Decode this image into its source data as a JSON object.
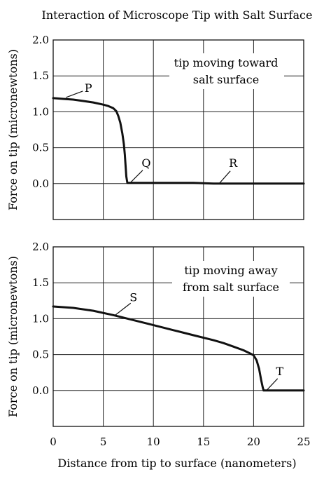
{
  "chart_data": {
    "type": "line",
    "title": "Interaction of Microscope Tip with Salt Surface",
    "xlabel": "Distance from tip to surface (nanometers)",
    "xlim": [
      0,
      25
    ],
    "x_ticks": [
      "0",
      "5",
      "10",
      "15",
      "20",
      "25"
    ],
    "grid": true,
    "panels": [
      {
        "ylabel": "Force on tip (micronewtons)",
        "ylim": [
          -0.5,
          2.0
        ],
        "y_ticks": [
          "0.0",
          "0.5",
          "1.0",
          "1.5",
          "2.0"
        ],
        "annotation": [
          "tip moving toward",
          "salt surface"
        ],
        "series": [
          {
            "x": [
              0,
              1,
              2,
              3,
              4,
              5,
              5.5,
              6,
              6.3,
              6.5,
              6.7,
              6.9,
              7.05,
              7.15,
              7.25,
              7.3,
              7.35,
              7.4,
              8,
              10,
              12,
              14,
              16,
              18,
              20,
              22,
              25
            ],
            "y": [
              1.19,
              1.18,
              1.17,
              1.15,
              1.13,
              1.1,
              1.08,
              1.05,
              1.01,
              0.94,
              0.85,
              0.7,
              0.55,
              0.4,
              0.2,
              0.1,
              0.05,
              0.01,
              0.01,
              0.01,
              0.01,
              0.01,
              0.0,
              0.0,
              0.0,
              0.0,
              0.0
            ]
          }
        ],
        "labels": [
          {
            "text": "P",
            "x": 1.0,
            "y": 1.19
          },
          {
            "text": "Q",
            "x": 7.4,
            "y": 0.01
          },
          {
            "text": "R",
            "x": 16.0,
            "y": 0.0
          }
        ]
      },
      {
        "ylabel": "Force on tip (micronewtons)",
        "ylim": [
          -0.5,
          2.0
        ],
        "y_ticks": [
          "0.0",
          "0.5",
          "1.0",
          "1.5",
          "2.0"
        ],
        "annotation": [
          "tip moving away",
          "from salt surface"
        ],
        "series": [
          {
            "x": [
              0,
              2,
              4,
              6,
              8,
              10,
              12,
              14,
              16,
              17,
              18,
              19,
              19.6,
              20,
              20.3,
              20.55,
              20.75,
              20.9,
              21.0,
              21.5,
              23,
              25
            ],
            "y": [
              1.17,
              1.15,
              1.11,
              1.05,
              0.98,
              0.91,
              0.84,
              0.77,
              0.7,
              0.66,
              0.61,
              0.56,
              0.52,
              0.49,
              0.42,
              0.3,
              0.15,
              0.05,
              0.0,
              0.0,
              0.0,
              0.0
            ]
          }
        ],
        "labels": [
          {
            "text": "S",
            "x": 6.2,
            "y": 1.05
          },
          {
            "text": "T",
            "x": 21.0,
            "y": 0.0
          }
        ]
      }
    ]
  }
}
